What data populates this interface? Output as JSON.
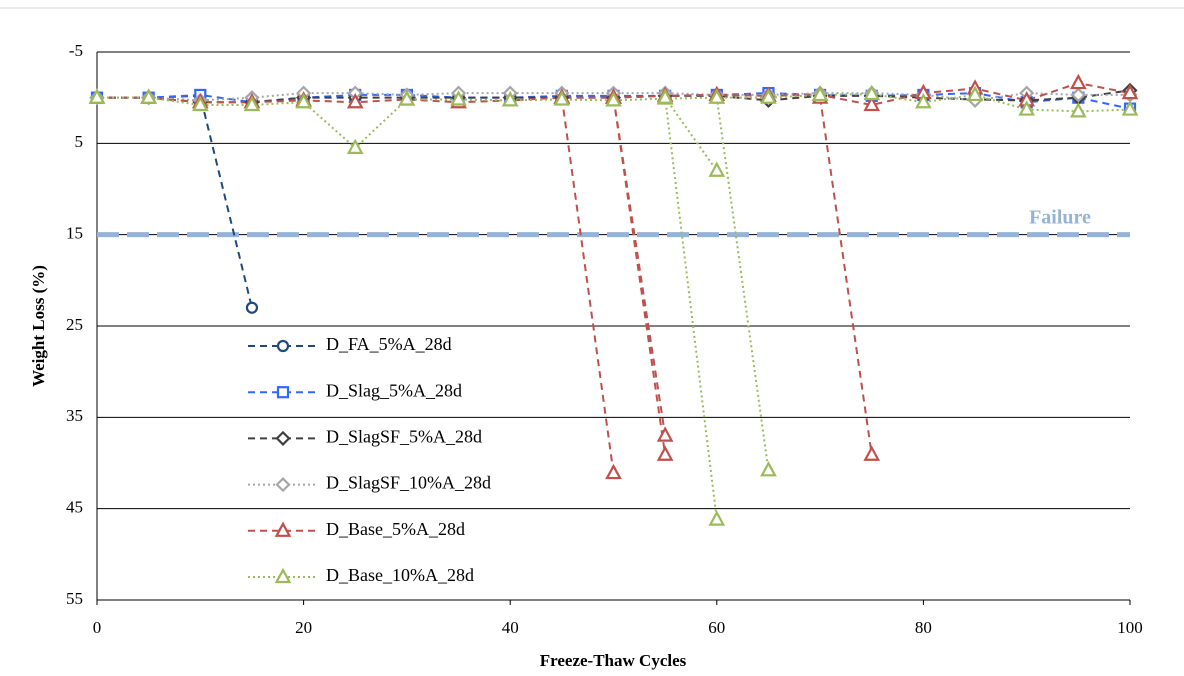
{
  "chart_data": {
    "type": "line",
    "x_label": "Freeze-Thaw Cycles",
    "y_label": "Weight Loss (%)",
    "xlim": [
      0,
      100
    ],
    "xticks": [
      0,
      20,
      40,
      60,
      80,
      100
    ],
    "ylim": [
      -5,
      55
    ],
    "yticks": [
      -5,
      5,
      15,
      25,
      35,
      45,
      55
    ],
    "y_inverted": true,
    "grid": true,
    "legend": "lower left",
    "reference_lines": [
      {
        "value": 15,
        "label": "Failure",
        "color": "#95b3d7"
      }
    ],
    "series": [
      {
        "name": "D_FA_5%A_28d",
        "color": "#1f497d",
        "dash": "dashed",
        "marker": "circle",
        "x": [
          0,
          5,
          10,
          15
        ],
        "values": [
          0,
          0,
          -0.2,
          23
        ]
      },
      {
        "name": "D_Slag_5%A_28d",
        "color": "#3366ff",
        "dash": "dashed",
        "marker": "square",
        "x": [
          0,
          5,
          10,
          15,
          20,
          25,
          30,
          35,
          40,
          45,
          50,
          55,
          60,
          65,
          70,
          75,
          80,
          85,
          90,
          95,
          100
        ],
        "values": [
          0,
          0,
          -0.3,
          0.5,
          0,
          -0.3,
          -0.3,
          0,
          0,
          -0.2,
          -0.2,
          -0.2,
          -0.3,
          -0.5,
          -0.3,
          -0.2,
          -0.3,
          -0.5,
          0.5,
          0,
          1.2
        ]
      },
      {
        "name": "D_SlagSF_5%A_28d",
        "color": "#404040",
        "dash": "dashed",
        "marker": "diamond",
        "x": [
          0,
          5,
          10,
          15,
          20,
          25,
          30,
          35,
          40,
          45,
          50,
          55,
          60,
          65,
          70,
          75,
          80,
          85,
          90,
          95,
          100
        ],
        "values": [
          0,
          0,
          0.5,
          0.5,
          0,
          0,
          0,
          0,
          0,
          0,
          0,
          -0.2,
          -0.2,
          0.3,
          -0.2,
          -0.2,
          0,
          0.2,
          0.3,
          0,
          -0.8
        ]
      },
      {
        "name": "D_SlagSF_10%A_28d",
        "color": "#a6a6a6",
        "dash": "dotted",
        "marker": "diamond",
        "x": [
          0,
          5,
          10,
          15,
          20,
          25,
          30,
          35,
          40,
          45,
          50,
          55,
          60,
          65,
          70,
          75,
          80,
          85,
          90,
          95,
          100
        ],
        "values": [
          0,
          0,
          0.3,
          0,
          -0.5,
          -0.5,
          -0.3,
          -0.5,
          -0.5,
          -0.5,
          -0.5,
          -0.5,
          -0.3,
          -0.3,
          -0.5,
          -0.5,
          -0.3,
          0.3,
          -0.5,
          -0.3,
          -0.3
        ]
      },
      {
        "name": "D_Base_5%A_28d",
        "color": "#c0504d",
        "dash": "dashed",
        "marker": "triangle",
        "x": [
          0,
          5,
          10,
          15,
          20,
          25,
          30,
          35,
          40,
          45,
          50,
          55,
          60,
          65,
          70,
          75,
          80,
          85,
          90,
          95,
          100,
          null,
          45,
          50,
          null,
          50,
          55,
          null,
          50,
          55,
          null,
          70,
          75
        ],
        "values": [
          0,
          0,
          0.5,
          0.5,
          0.3,
          0.5,
          0.2,
          0.5,
          0.3,
          0,
          0,
          -0.2,
          -0.3,
          -0.2,
          -0.3,
          0.8,
          -0.5,
          -1,
          0.3,
          -1.6,
          -0.5,
          null,
          0,
          41.1,
          null,
          0,
          39.1,
          null,
          0,
          37,
          null,
          0,
          39.1
        ]
      },
      {
        "name": "D_Base_10%A_28d",
        "color": "#9bbb59",
        "dash": "dotted",
        "marker": "triangle",
        "x": [
          0,
          5,
          10,
          15,
          20,
          25,
          30,
          35,
          40,
          45,
          50,
          55,
          60,
          65,
          70,
          75,
          80,
          85,
          90,
          95,
          100,
          null,
          55,
          60,
          null,
          55,
          60,
          null,
          60,
          65
        ],
        "values": [
          0,
          0,
          0.8,
          0.8,
          0.5,
          5.5,
          0.2,
          0.2,
          0.3,
          0.2,
          0.3,
          0.1,
          0,
          0,
          -0.3,
          -0.4,
          0.5,
          -0.3,
          1.3,
          1.5,
          1.3,
          null,
          0,
          8,
          null,
          0,
          46.2,
          null,
          0,
          40.8
        ]
      }
    ]
  }
}
